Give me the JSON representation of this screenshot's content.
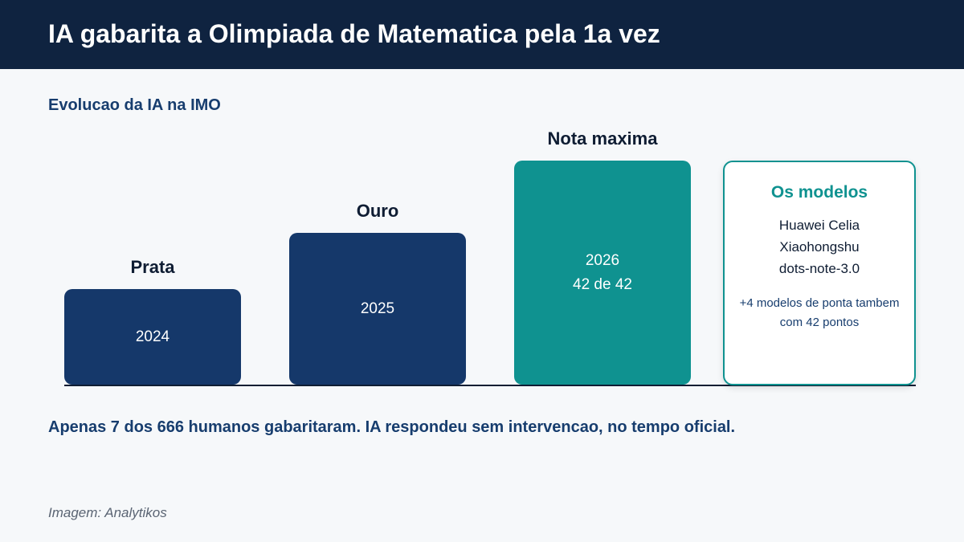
{
  "header": {
    "title": "IA gabarita a Olimpiada de Matematica pela 1a vez"
  },
  "section_title": "Evolucao da IA na IMO",
  "milestones": [
    {
      "label": "Prata",
      "year": "2024",
      "score": ""
    },
    {
      "label": "Ouro",
      "year": "2025",
      "score": ""
    },
    {
      "label": "Nota maxima",
      "year": "2026",
      "score": "42 de 42"
    }
  ],
  "models_card": {
    "title": "Os modelos",
    "models": [
      "Huawei Celia",
      "Xiaohongshu",
      "dots-note-3.0"
    ],
    "note": "+4 modelos de ponta tambem com 42 pontos"
  },
  "footnote": "Apenas 7 dos 666 humanos gabaritaram. IA respondeu sem intervencao, no tempo oficial.",
  "credit": "Imagem: Analytikos",
  "colors": {
    "header_bg": "#0f2340",
    "navy": "#15386a",
    "teal": "#0f9290",
    "text_dark": "#0f1d33",
    "text_blue": "#173d6e"
  }
}
